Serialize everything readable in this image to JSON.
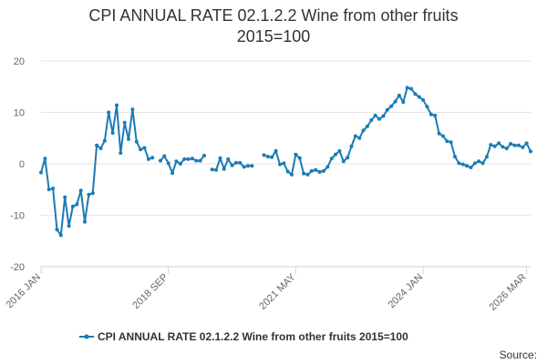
{
  "chart_data": {
    "type": "line",
    "title_line1": "CPI ANNUAL RATE 02.1.2.2 Wine from other fruits",
    "title_line2": "2015=100",
    "xlabel": "",
    "ylabel": "",
    "ylim": [
      -20,
      20
    ],
    "y_ticks": [
      -20,
      -10,
      0,
      10,
      20
    ],
    "x_ticks": [
      {
        "label": "2016 JAN",
        "index": 0
      },
      {
        "label": "2018 SEP",
        "index": 32
      },
      {
        "label": "2021 MAY",
        "index": 64
      },
      {
        "label": "2024 JAN",
        "index": 96
      },
      {
        "label": "2026 MAR",
        "index": 122
      }
    ],
    "grid": true,
    "color": "#1b7bb5",
    "legend_position": "bottom",
    "source": "Source:",
    "series": [
      {
        "name": "CPI ANNUAL RATE 02.1.2.2 Wine from other fruits 2015=100",
        "start": "2016 JAN",
        "values": [
          -1.7,
          1.0,
          -5.0,
          -4.8,
          -12.8,
          -13.9,
          -6.5,
          -12.1,
          -8.3,
          -7.9,
          -5.2,
          -11.3,
          -6.0,
          -5.7,
          3.6,
          3.0,
          4.5,
          10.0,
          6.0,
          11.4,
          2.1,
          8.0,
          4.8,
          10.6,
          4.3,
          2.8,
          3.1,
          0.9,
          1.2,
          null,
          0.6,
          1.5,
          0.1,
          -1.8,
          0.5,
          0.0,
          0.9,
          0.9,
          1.0,
          0.6,
          0.6,
          1.6,
          null,
          -1.1,
          -1.2,
          1.1,
          -1.0,
          0.9,
          -0.3,
          0.2,
          0.2,
          -0.6,
          -0.4,
          -0.4,
          null,
          null,
          1.7,
          1.4,
          1.3,
          2.5,
          -0.1,
          0.1,
          -1.5,
          -2.1,
          1.8,
          1.1,
          -1.9,
          -2.1,
          -1.4,
          -1.2,
          -1.6,
          -1.4,
          -0.6,
          1.0,
          1.8,
          2.5,
          0.5,
          1.2,
          3.4,
          5.4,
          5.0,
          6.5,
          7.3,
          8.5,
          9.4,
          8.7,
          9.3,
          10.5,
          11.2,
          12.1,
          13.3,
          12.0,
          14.8,
          14.6,
          13.6,
          13.0,
          12.4,
          11.1,
          9.6,
          9.4,
          5.9,
          5.4,
          4.4,
          4.2,
          1.4,
          0.1,
          -0.1,
          -0.4,
          -0.7,
          0.1,
          0.5,
          0.1,
          1.4,
          3.7,
          3.4,
          4.0,
          3.3,
          3.0,
          3.9,
          3.6,
          3.6,
          3.2,
          4.0,
          2.4
        ]
      }
    ]
  }
}
